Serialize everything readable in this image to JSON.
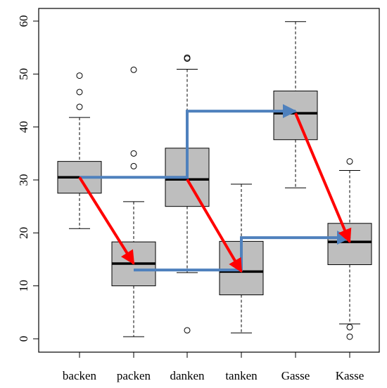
{
  "chart_data": {
    "type": "boxplot",
    "ylim": [
      -2,
      63
    ],
    "y_ticks": [
      0,
      10,
      20,
      30,
      40,
      50,
      60
    ],
    "categories": [
      "backen",
      "packen",
      "danken",
      "tanken",
      "Gasse",
      "Kasse"
    ],
    "box_fill": "#bebebe",
    "red_arrow_color": "#ff0000",
    "blue_arrow_color": "#4f81bd",
    "boxes": [
      {
        "label": "backen",
        "whisker_low": 20.8,
        "q1": 27.5,
        "median": 30.5,
        "q3": 33.5,
        "whisker_high": 41.8,
        "outliers": [
          43.8,
          46.6,
          49.7
        ]
      },
      {
        "label": "packen",
        "whisker_low": 0.4,
        "q1": 10.0,
        "median": 14.2,
        "q3": 18.3,
        "whisker_high": 25.9,
        "outliers": [
          32.6,
          35.0,
          50.8
        ]
      },
      {
        "label": "danken",
        "whisker_low": 12.5,
        "q1": 25.0,
        "median": 30.1,
        "q3": 36.0,
        "whisker_high": 50.9,
        "outliers": [
          1.6,
          52.9,
          53.1
        ]
      },
      {
        "label": "tanken",
        "whisker_low": 1.1,
        "q1": 8.3,
        "median": 12.7,
        "q3": 18.4,
        "whisker_high": 29.2,
        "outliers": []
      },
      {
        "label": "Gasse",
        "whisker_low": 28.5,
        "q1": 37.6,
        "median": 42.6,
        "q3": 46.8,
        "whisker_high": 59.9,
        "outliers": []
      },
      {
        "label": "Kasse",
        "whisker_low": 2.8,
        "q1": 14.0,
        "median": 18.3,
        "q3": 21.8,
        "whisker_high": 31.8,
        "outliers": [
          0.4,
          2.2,
          33.5
        ]
      }
    ],
    "red_arrows": [
      {
        "from": {
          "x": 1,
          "y": 30.5
        },
        "to": {
          "x": 2,
          "y": 14.2
        }
      },
      {
        "from": {
          "x": 3,
          "y": 30.1
        },
        "to": {
          "x": 4,
          "y": 12.7
        }
      },
      {
        "from": {
          "x": 5,
          "y": 42.6
        },
        "to": {
          "x": 6,
          "y": 18.3
        }
      }
    ],
    "blue_arrows": [
      {
        "points": [
          [
            1.0,
            30.5
          ],
          [
            3.0,
            30.5
          ],
          [
            3.0,
            43.0
          ],
          [
            5.0,
            43.0
          ]
        ]
      },
      {
        "points": [
          [
            2.0,
            13.0
          ],
          [
            4.0,
            13.0
          ],
          [
            4.0,
            19.1
          ],
          [
            6.0,
            19.1
          ]
        ]
      }
    ]
  }
}
